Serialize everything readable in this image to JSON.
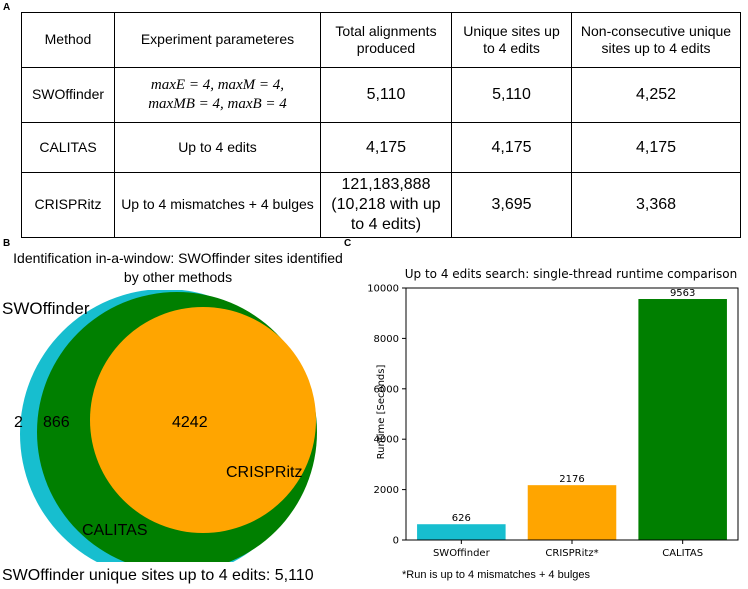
{
  "panels": {
    "a": "A",
    "b": "B",
    "c": "C"
  },
  "table": {
    "headers": [
      "Method",
      "Experiment parameteres",
      "Total alignments produced",
      "Unique sites up to 4 edits",
      "Non-consecutive unique sites up to 4 edits"
    ],
    "rows": [
      {
        "method": "SWOffinder",
        "params_line1": "maxE = 4, maxM = 4,",
        "params_line2": "maxMB = 4, maxB = 4",
        "total": "5,110",
        "unique": "5,110",
        "nonconsec": "4,252"
      },
      {
        "method": "CALITAS",
        "params": "Up to 4 edits",
        "total": "4,175",
        "unique": "4,175",
        "nonconsec": "4,175"
      },
      {
        "method": "CRISPRitz",
        "params": "Up to 4 mismatches + 4 bulges",
        "total": "121,183,888 (10,218 with up to 4 edits)",
        "unique": "3,695",
        "nonconsec": "3,368"
      }
    ]
  },
  "venn": {
    "title": "Identification in-a-window: SWOffinder sites identified by other methods",
    "labels": {
      "swoffinder": "SWOffinder",
      "calitas": "CALITAS",
      "crispritz": "CRISPRitz"
    },
    "regions": {
      "swoffinder_only": "2",
      "calitas_only": "866",
      "crispritz_overlap": "4242"
    },
    "footer": "SWOffinder unique sites up to 4 edits: 5,110",
    "colors": {
      "swoffinder": "#17becf",
      "calitas": "#007f00",
      "crispritz": "#ffa500"
    }
  },
  "chart_data": {
    "type": "bar",
    "title": "Up to 4 edits search: single-thread runtime comparison",
    "ylabel": "Runtime [Seconds]",
    "xlabel": "",
    "categories": [
      "SWOffinder",
      "CRISPRitz*",
      "CALITAS"
    ],
    "values": [
      626,
      2176,
      9563
    ],
    "value_labels": [
      "626",
      "2176",
      "9563"
    ],
    "colors": [
      "#17becf",
      "#ffa500",
      "#007f00"
    ],
    "ylim": [
      0,
      10000
    ],
    "yticks": [
      0,
      2000,
      4000,
      6000,
      8000,
      10000
    ],
    "grid": false,
    "note": "*Run is up to 4 mismatches + 4 bulges"
  }
}
